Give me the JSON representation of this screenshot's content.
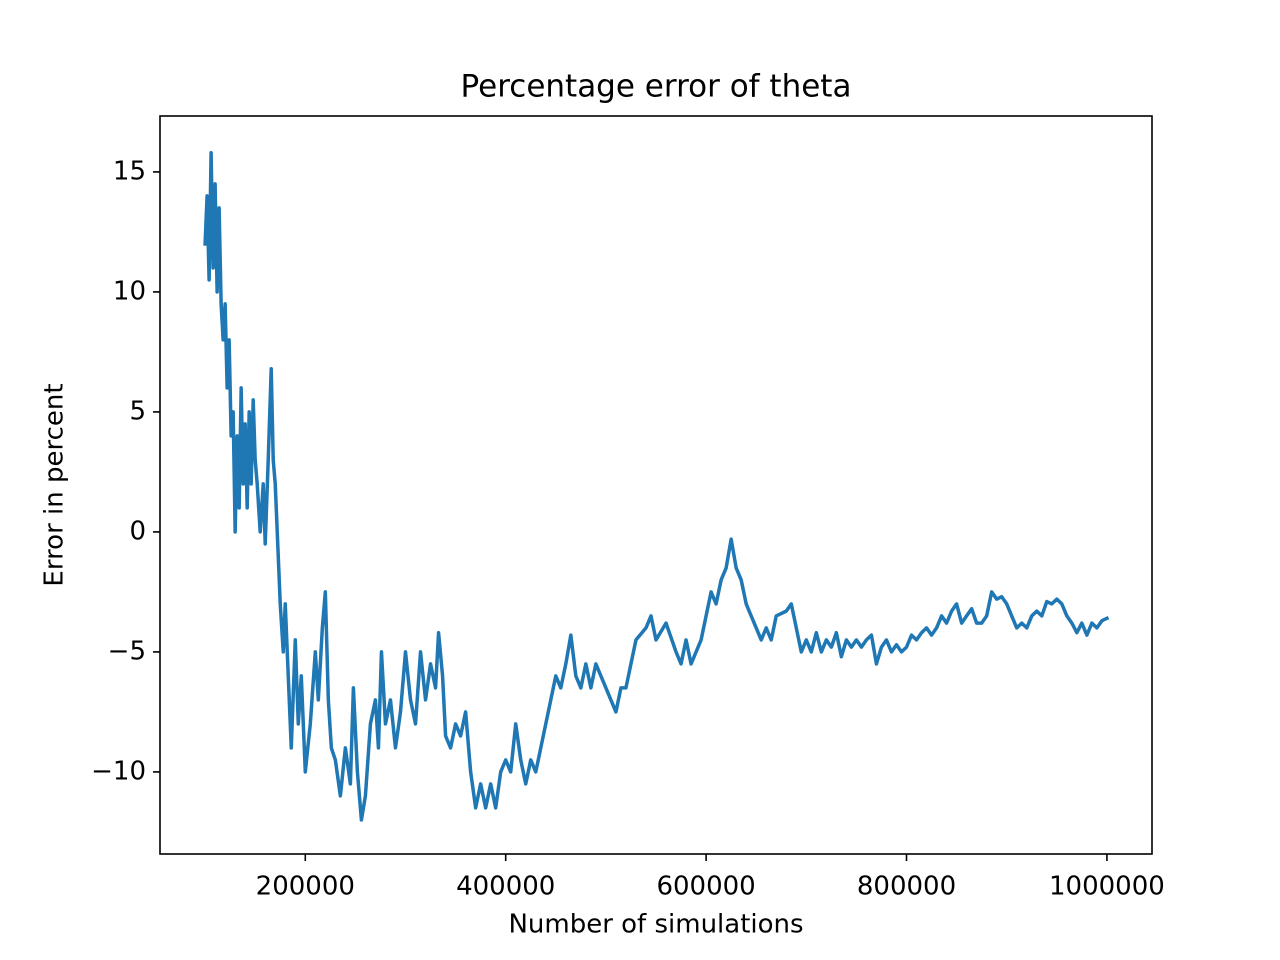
{
  "chart_data": {
    "type": "line",
    "title": "Percentage error of theta",
    "xlabel": "Number of simulations",
    "ylabel": "Error in percent",
    "color": "#1f77b4",
    "x": [
      100000,
      102000,
      104000,
      106000,
      108000,
      110000,
      112000,
      114000,
      116000,
      118000,
      120000,
      122000,
      124000,
      126000,
      128000,
      130000,
      132000,
      134000,
      136000,
      138000,
      140000,
      142000,
      144000,
      146000,
      148000,
      150000,
      152000,
      155000,
      158000,
      160000,
      163000,
      166000,
      168000,
      170000,
      172000,
      175000,
      178000,
      180000,
      183000,
      186000,
      190000,
      193000,
      196000,
      200000,
      205000,
      210000,
      213000,
      217000,
      220000,
      223000,
      226000,
      230000,
      235000,
      240000,
      245000,
      248000,
      252000,
      256000,
      260000,
      265000,
      270000,
      273000,
      276000,
      280000,
      285000,
      290000,
      295000,
      300000,
      305000,
      310000,
      315000,
      320000,
      325000,
      330000,
      333000,
      337000,
      340000,
      345000,
      350000,
      355000,
      360000,
      365000,
      370000,
      375000,
      380000,
      385000,
      390000,
      395000,
      400000,
      405000,
      410000,
      415000,
      420000,
      425000,
      430000,
      435000,
      440000,
      445000,
      450000,
      455000,
      460000,
      465000,
      470000,
      475000,
      480000,
      485000,
      490000,
      495000,
      500000,
      505000,
      510000,
      515000,
      520000,
      525000,
      530000,
      540000,
      545000,
      550000,
      560000,
      570000,
      575000,
      580000,
      585000,
      590000,
      595000,
      600000,
      605000,
      610000,
      615000,
      620000,
      625000,
      630000,
      635000,
      640000,
      645000,
      650000,
      655000,
      660000,
      665000,
      670000,
      680000,
      685000,
      690000,
      695000,
      700000,
      705000,
      710000,
      715000,
      720000,
      725000,
      730000,
      735000,
      740000,
      745000,
      750000,
      755000,
      760000,
      765000,
      770000,
      775000,
      780000,
      785000,
      790000,
      795000,
      800000,
      805000,
      810000,
      815000,
      820000,
      825000,
      830000,
      835000,
      840000,
      845000,
      850000,
      855000,
      860000,
      865000,
      870000,
      875000,
      880000,
      885000,
      890000,
      895000,
      900000,
      905000,
      910000,
      915000,
      920000,
      925000,
      930000,
      935000,
      940000,
      945000,
      950000,
      955000,
      960000,
      965000,
      970000,
      975000,
      980000,
      985000,
      990000,
      995000,
      1000000
    ],
    "values": [
      12,
      14,
      10.5,
      15.8,
      11,
      14.5,
      10,
      13.5,
      9.5,
      8,
      9.5,
      6,
      8,
      4,
      5,
      0,
      4,
      1,
      6,
      2,
      4.5,
      1,
      5,
      2,
      5.5,
      3,
      2,
      0,
      2,
      -0.5,
      3,
      6.8,
      3,
      2,
      0,
      -3,
      -5,
      -3,
      -6,
      -9,
      -4.5,
      -8,
      -6,
      -10,
      -8,
      -5,
      -7,
      -4,
      -2.5,
      -7,
      -9,
      -9.5,
      -11,
      -9,
      -10.5,
      -6.5,
      -10,
      -12,
      -11,
      -8,
      -7,
      -9,
      -5,
      -8,
      -7,
      -9,
      -7.5,
      -5,
      -7,
      -8,
      -5,
      -7,
      -5.5,
      -6.5,
      -4.2,
      -6,
      -8.5,
      -9,
      -8,
      -8.5,
      -7.5,
      -10,
      -11.5,
      -10.5,
      -11.5,
      -10.5,
      -11.5,
      -10,
      -9.5,
      -10,
      -8,
      -9.5,
      -10.5,
      -9.5,
      -10,
      -9,
      -8,
      -7,
      -6,
      -6.5,
      -5.5,
      -4.3,
      -6,
      -6.5,
      -5.5,
      -6.5,
      -5.5,
      -6,
      -6.5,
      -7,
      -7.5,
      -6.5,
      -6.5,
      -5.5,
      -4.5,
      -4,
      -3.5,
      -4.5,
      -3.8,
      -5,
      -5.5,
      -4.5,
      -5.5,
      -5,
      -4.5,
      -3.5,
      -2.5,
      -3,
      -2,
      -1.5,
      -0.3,
      -1.5,
      -2,
      -3,
      -3.5,
      -4,
      -4.5,
      -4,
      -4.5,
      -3.5,
      -3.3,
      -3,
      -4,
      -5,
      -4.5,
      -5,
      -4.2,
      -5,
      -4.5,
      -4.8,
      -4.2,
      -5.2,
      -4.5,
      -4.8,
      -4.5,
      -4.8,
      -4.5,
      -4.3,
      -5.5,
      -4.8,
      -4.5,
      -5,
      -4.7,
      -5,
      -4.8,
      -4.3,
      -4.5,
      -4.2,
      -4,
      -4.3,
      -4,
      -3.5,
      -3.8,
      -3.3,
      -3,
      -3.8,
      -3.5,
      -3.2,
      -3.8,
      -3.8,
      -3.5,
      -2.5,
      -2.8,
      -2.7,
      -3,
      -3.5,
      -4,
      -3.8,
      -4,
      -3.5,
      -3.3,
      -3.5,
      -2.9,
      -3,
      -2.8,
      -3,
      -3.5,
      -3.8,
      -4.2,
      -3.8,
      -4.3,
      -3.8,
      -4,
      -3.7,
      -3.6
    ],
    "xlim": [
      55000,
      1045000
    ],
    "ylim": [
      -13.42,
      17.33
    ],
    "xticks": [
      200000,
      400000,
      600000,
      800000,
      1000000
    ],
    "yticks": [
      {
        "value": -10,
        "label": "−10"
      },
      {
        "value": -5,
        "label": "−5"
      },
      0,
      5,
      10,
      15
    ]
  }
}
